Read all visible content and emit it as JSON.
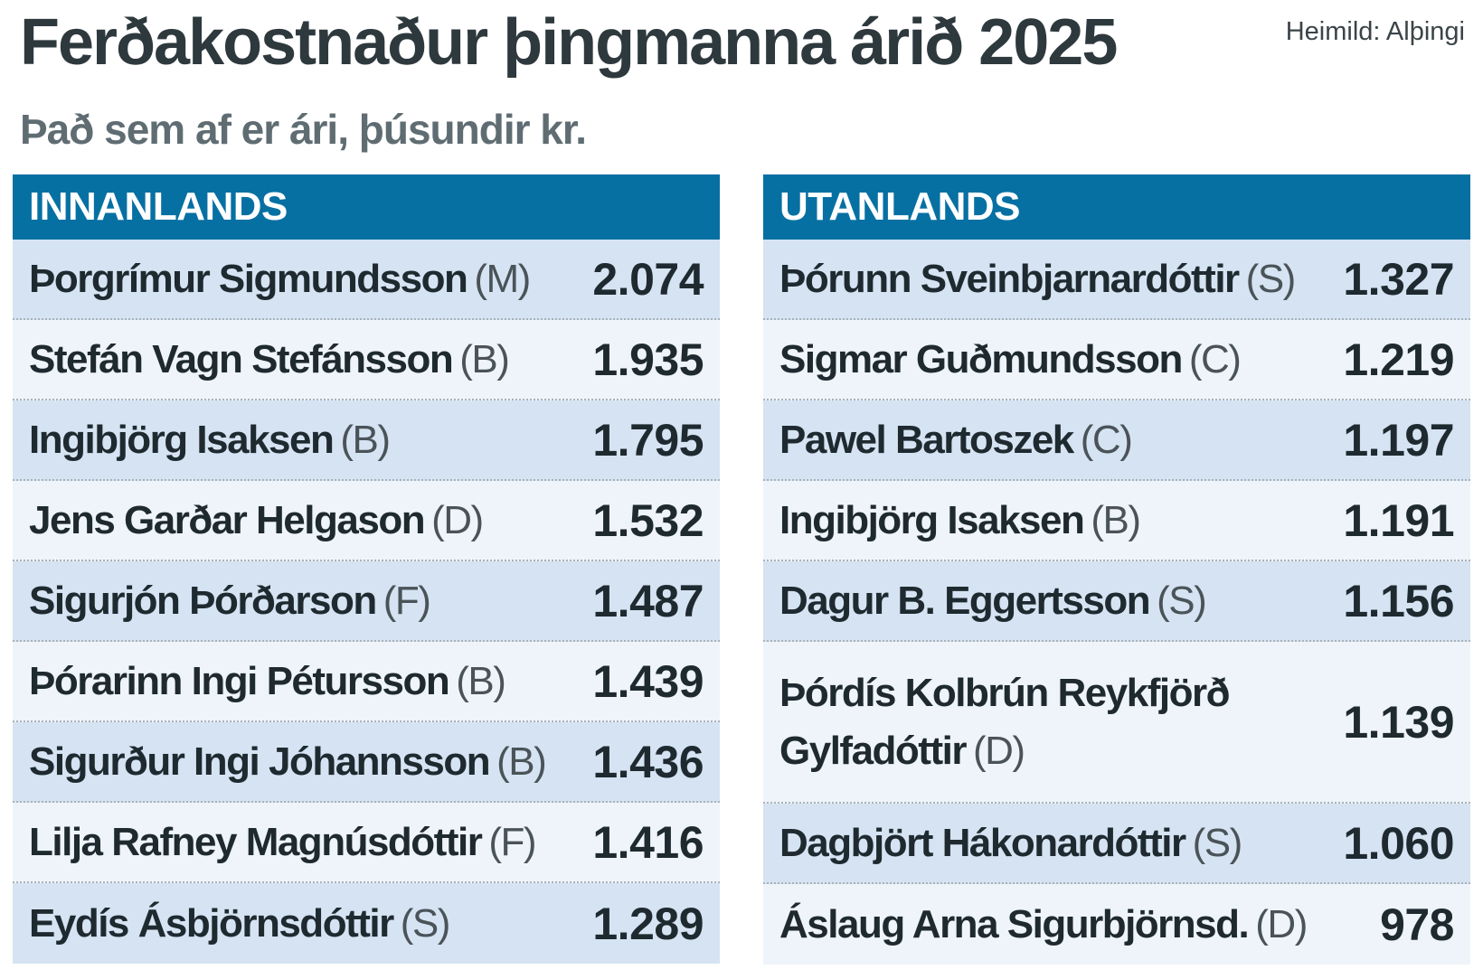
{
  "title": "Ferðakostnaður þingmanna árið 2025",
  "subtitle": "Það sem af er ári, þúsundir kr.",
  "source": "Heimild: Alþingi",
  "colors": {
    "header": "#0670a3",
    "row_shaded": "#d5e3f2",
    "row_light": "#eef4fa",
    "title": "#2e393e",
    "subtitle": "#5f6d73"
  },
  "chart_data": [
    {
      "type": "table",
      "title": "INNANLANDS",
      "rows": [
        {
          "name": "Þorgrímur Sigmundsson",
          "party": "(M)",
          "value": "2.074"
        },
        {
          "name": "Stefán Vagn Stefánsson",
          "party": "(B)",
          "value": "1.935"
        },
        {
          "name": "Ingibjörg Isaksen",
          "party": "(B)",
          "value": "1.795"
        },
        {
          "name": "Jens Garðar Helgason",
          "party": "(D)",
          "value": "1.532"
        },
        {
          "name": "Sigurjón Þórðarson",
          "party": "(F)",
          "value": "1.487"
        },
        {
          "name": "Þórarinn Ingi Pétursson",
          "party": "(B)",
          "value": "1.439"
        },
        {
          "name": "Sigurður Ingi Jóhannsson",
          "party": "(B)",
          "value": "1.436"
        },
        {
          "name": "Lilja Rafney Magnúsdóttir",
          "party": "(F)",
          "value": "1.416"
        },
        {
          "name": "Eydís Ásbjörnsdóttir",
          "party": "(S)",
          "value": "1.289"
        }
      ]
    },
    {
      "type": "table",
      "title": "UTANLANDS",
      "rows": [
        {
          "name": "Þórunn Sveinbjarnardóttir",
          "party": "(S)",
          "value": "1.327"
        },
        {
          "name": "Sigmar Guðmundsson",
          "party": "(C)",
          "value": "1.219"
        },
        {
          "name": "Pawel Bartoszek",
          "party": "(C)",
          "value": "1.197"
        },
        {
          "name": "Ingibjörg Isaksen",
          "party": "(B)",
          "value": "1.191"
        },
        {
          "name": "Dagur B. Eggertsson",
          "party": "(S)",
          "value": "1.156"
        },
        {
          "name": "Þórdís Kolbrún Reykfjörð Gylfadóttir",
          "party": "(D)",
          "value": "1.139"
        },
        {
          "name": "Dagbjört Hákonardóttir",
          "party": "(S)",
          "value": "1.060"
        },
        {
          "name": "Áslaug Arna Sigurbjörnsd.",
          "party": "(D)",
          "value": "978"
        }
      ]
    }
  ]
}
